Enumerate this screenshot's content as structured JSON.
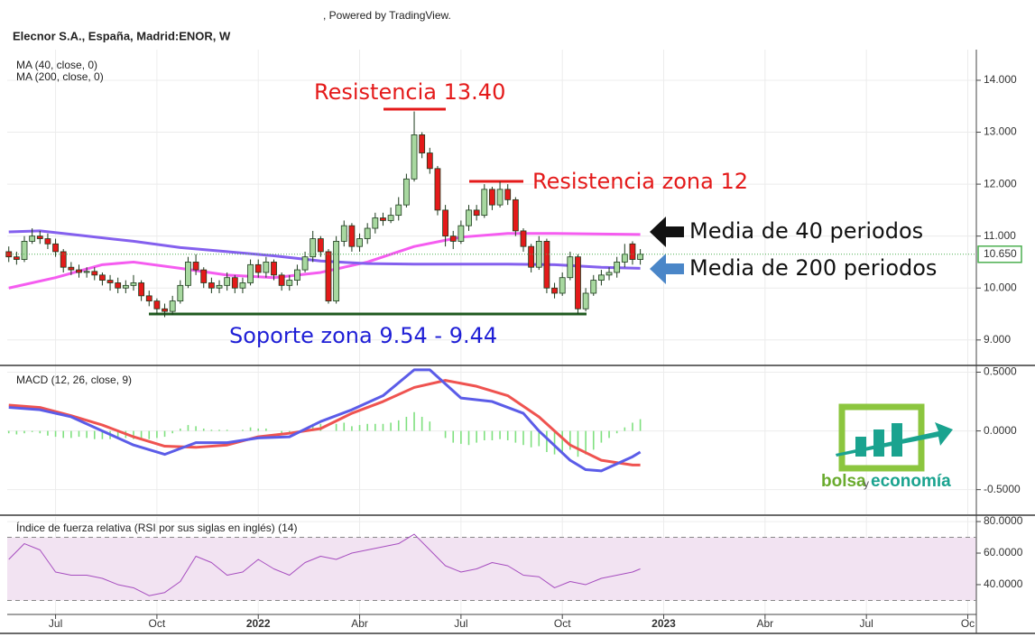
{
  "credit": ", Powered by TradingView.",
  "logo": {
    "word1": "bolsa",
    "word2": "y",
    "word3": "economía"
  },
  "chart_data": [
    {
      "type": "candlestick",
      "title": "Elecnor S.A., España, Madrid:ENOR, W",
      "up_color": "#a8d8a0",
      "down_color": "#e41a1a",
      "x": [
        0,
        1,
        2,
        3,
        4,
        5,
        6,
        7,
        8,
        9,
        10,
        11,
        12,
        13,
        14,
        15,
        16,
        17,
        18,
        19,
        20,
        21,
        22,
        23,
        24,
        25,
        26,
        27,
        28,
        29,
        30,
        31,
        32,
        33,
        34,
        35,
        36,
        37,
        38,
        39,
        40,
        41,
        42,
        43,
        44,
        45,
        46,
        47,
        48,
        49,
        50,
        51,
        52,
        53,
        54,
        55,
        56,
        57,
        58,
        59,
        60,
        61,
        62,
        63,
        64,
        65,
        66,
        67,
        68,
        69,
        70,
        71,
        72,
        73,
        74,
        75,
        76,
        77,
        78,
        79,
        80,
        81
      ],
      "open": [
        10.7,
        10.6,
        10.55,
        10.9,
        11.0,
        10.95,
        10.85,
        10.7,
        10.4,
        10.35,
        10.3,
        10.32,
        10.25,
        10.15,
        10.1,
        10.0,
        10.05,
        10.1,
        9.85,
        9.75,
        9.6,
        9.55,
        9.75,
        10.05,
        10.5,
        10.35,
        10.1,
        10.0,
        10.05,
        10.2,
        10.0,
        10.1,
        10.45,
        10.3,
        10.5,
        10.25,
        10.05,
        10.15,
        10.35,
        10.6,
        10.95,
        10.7,
        9.75,
        10.9,
        11.2,
        10.8,
        10.95,
        11.15,
        11.35,
        11.3,
        11.4,
        11.6,
        12.1,
        12.95,
        12.6,
        12.3,
        11.5,
        11.0,
        10.9,
        11.2,
        11.5,
        11.4,
        11.9,
        11.6,
        11.9,
        11.7,
        11.1,
        10.8,
        10.4,
        10.9,
        10.0,
        9.9,
        10.2,
        10.6,
        9.6,
        9.9,
        10.15,
        10.25,
        10.3,
        10.5,
        10.85,
        10.55
      ],
      "high": [
        10.8,
        10.7,
        11.0,
        11.15,
        11.1,
        11.05,
        10.95,
        10.75,
        10.5,
        10.45,
        10.4,
        10.4,
        10.3,
        10.25,
        10.2,
        10.15,
        10.25,
        10.15,
        9.95,
        9.8,
        9.7,
        9.85,
        10.15,
        10.6,
        10.65,
        10.4,
        10.2,
        10.15,
        10.3,
        10.25,
        10.2,
        10.55,
        10.55,
        10.6,
        10.55,
        10.3,
        10.25,
        10.45,
        10.7,
        11.1,
        11.0,
        10.75,
        11.0,
        11.3,
        11.25,
        11.05,
        11.25,
        11.45,
        11.45,
        11.55,
        11.75,
        12.2,
        13.4,
        13.0,
        12.7,
        12.35,
        11.6,
        11.1,
        11.3,
        11.6,
        11.6,
        12.0,
        11.95,
        12.05,
        12.0,
        11.75,
        11.15,
        10.85,
        11.0,
        10.95,
        10.1,
        10.3,
        10.7,
        10.65,
        10.0,
        10.25,
        10.35,
        10.4,
        10.6,
        10.85,
        10.9,
        10.75
      ],
      "low": [
        10.5,
        10.45,
        10.5,
        10.85,
        10.85,
        10.75,
        10.6,
        10.3,
        10.25,
        10.2,
        10.2,
        10.15,
        10.05,
        9.95,
        9.9,
        9.9,
        9.95,
        9.75,
        9.65,
        9.5,
        9.44,
        9.48,
        9.7,
        10.0,
        10.25,
        10.0,
        9.9,
        9.9,
        9.95,
        9.9,
        9.9,
        10.05,
        10.2,
        10.2,
        10.15,
        9.95,
        9.95,
        10.05,
        10.3,
        10.5,
        10.6,
        9.7,
        9.7,
        10.8,
        10.7,
        10.7,
        10.85,
        11.05,
        11.2,
        11.25,
        11.3,
        11.55,
        12.05,
        12.5,
        12.2,
        11.4,
        10.8,
        10.75,
        10.85,
        11.1,
        11.3,
        11.35,
        11.5,
        11.55,
        11.6,
        11.0,
        10.7,
        10.3,
        10.35,
        9.9,
        9.8,
        9.85,
        10.15,
        9.5,
        9.55,
        9.85,
        10.05,
        10.15,
        10.2,
        10.4,
        10.45,
        10.45
      ],
      "close": [
        10.6,
        10.55,
        10.9,
        11.0,
        10.95,
        10.85,
        10.7,
        10.4,
        10.35,
        10.3,
        10.32,
        10.25,
        10.15,
        10.1,
        10.0,
        10.05,
        10.1,
        9.85,
        9.75,
        9.6,
        9.55,
        9.75,
        10.05,
        10.5,
        10.35,
        10.1,
        10.0,
        10.05,
        10.2,
        10.0,
        10.1,
        10.45,
        10.3,
        10.5,
        10.25,
        10.05,
        10.15,
        10.35,
        10.6,
        10.95,
        10.7,
        9.75,
        10.9,
        11.2,
        10.8,
        10.95,
        11.15,
        11.35,
        11.3,
        11.4,
        11.6,
        12.1,
        12.95,
        12.6,
        12.3,
        11.5,
        11.0,
        10.9,
        11.2,
        11.5,
        11.4,
        11.9,
        11.6,
        11.9,
        11.7,
        11.1,
        10.8,
        10.4,
        10.9,
        10.0,
        9.9,
        10.2,
        10.6,
        9.6,
        9.9,
        10.15,
        10.25,
        10.3,
        10.5,
        10.65,
        10.55,
        10.65
      ],
      "series": [
        {
          "name": "MA (40, close, 0)",
          "color": "#f55cf0",
          "x": [
            0,
            6,
            12,
            16,
            22,
            28,
            34,
            40,
            46,
            52,
            58,
            64,
            70,
            76,
            81
          ],
          "values": [
            10.0,
            10.2,
            10.45,
            10.5,
            10.38,
            10.25,
            10.2,
            10.3,
            10.5,
            10.8,
            10.98,
            11.05,
            11.05,
            11.04,
            11.03
          ]
        },
        {
          "name": "MA (200, close, 0)",
          "color": "#8460ee",
          "x": [
            0,
            4,
            10,
            16,
            22,
            28,
            34,
            40,
            46,
            52,
            58,
            64,
            70,
            76,
            81
          ],
          "values": [
            11.08,
            11.1,
            11.0,
            10.9,
            10.78,
            10.7,
            10.62,
            10.52,
            10.47,
            10.46,
            10.46,
            10.46,
            10.45,
            10.4,
            10.38
          ]
        }
      ],
      "last_price": {
        "value": 10.65,
        "label": "10.650",
        "color": "#4caf50"
      },
      "ylim": [
        8.51,
        14.59
      ],
      "yticks": [
        {
          "value": 14,
          "label": "14.000"
        },
        {
          "value": 13,
          "label": "13.000"
        },
        {
          "value": 12,
          "label": "12.000"
        },
        {
          "value": 11,
          "label": "11.000"
        },
        {
          "value": 10,
          "label": "10.000"
        },
        {
          "value": 9,
          "label": "9.000"
        }
      ],
      "annotations": [
        {
          "text": "Resistencia 13.40",
          "color": "#e41a1a"
        },
        {
          "text": "Resistencia zona 12",
          "color": "#e41a1a"
        },
        {
          "text": "Media de 40 periodos",
          "color": "#111111"
        },
        {
          "text": "Media de 200 periodos",
          "color": "#111111"
        },
        {
          "text": "Soporte zona 9.54 - 9.44",
          "color": "#1f1fd6"
        }
      ]
    },
    {
      "type": "line",
      "title": "MACD (12, 26, close, 9)",
      "histogram": {
        "color": "#7fe07f",
        "x": [
          0,
          1,
          2,
          3,
          4,
          5,
          6,
          7,
          8,
          9,
          10,
          11,
          12,
          13,
          14,
          15,
          16,
          17,
          18,
          19,
          20,
          21,
          22,
          23,
          24,
          25,
          26,
          27,
          28,
          29,
          30,
          31,
          32,
          33,
          34,
          35,
          36,
          37,
          38,
          39,
          40,
          41,
          42,
          43,
          44,
          45,
          46,
          47,
          48,
          49,
          50,
          51,
          52,
          53,
          54,
          55,
          56,
          57,
          58,
          59,
          60,
          61,
          62,
          63,
          64,
          65,
          66,
          67,
          68,
          69,
          70,
          71,
          72,
          73,
          74,
          75,
          76,
          77,
          78,
          79,
          80,
          81
        ],
        "values": [
          -0.02,
          -0.03,
          -0.02,
          -0.01,
          -0.02,
          -0.04,
          -0.05,
          -0.06,
          -0.06,
          -0.05,
          -0.06,
          -0.07,
          -0.07,
          -0.07,
          -0.06,
          -0.06,
          -0.07,
          -0.07,
          -0.07,
          -0.06,
          -0.05,
          -0.02,
          0.02,
          0.05,
          0.04,
          0.02,
          0.01,
          0.01,
          0.01,
          0.0,
          0.01,
          0.03,
          0.02,
          0.02,
          0.0,
          -0.02,
          -0.02,
          -0.01,
          0.02,
          0.06,
          0.06,
          0.0,
          0.06,
          0.07,
          0.04,
          0.05,
          0.06,
          0.06,
          0.06,
          0.07,
          0.09,
          0.12,
          0.16,
          0.12,
          0.08,
          0.0,
          -0.06,
          -0.1,
          -0.11,
          -0.12,
          -0.1,
          -0.08,
          -0.08,
          -0.07,
          -0.08,
          -0.1,
          -0.12,
          -0.14,
          -0.13,
          -0.18,
          -0.2,
          -0.2,
          -0.16,
          -0.22,
          -0.2,
          -0.16,
          -0.1,
          -0.06,
          -0.02,
          0.03,
          0.07,
          0.1
        ]
      },
      "series": [
        {
          "color": "#ef5350",
          "x": [
            0,
            4,
            8,
            12,
            16,
            20,
            24,
            28,
            32,
            36,
            40,
            44,
            48,
            52,
            56,
            60,
            64,
            68,
            72,
            76,
            80,
            81
          ],
          "values": [
            0.22,
            0.2,
            0.13,
            0.05,
            -0.05,
            -0.13,
            -0.14,
            -0.12,
            -0.05,
            -0.02,
            0.02,
            0.15,
            0.25,
            0.37,
            0.43,
            0.38,
            0.3,
            0.12,
            -0.12,
            -0.25,
            -0.29,
            -0.29
          ]
        },
        {
          "color": "#5b5ce8",
          "x": [
            0,
            4,
            8,
            12,
            16,
            20,
            24,
            28,
            32,
            36,
            40,
            44,
            48,
            52,
            54,
            56,
            58,
            62,
            66,
            68,
            72,
            74,
            76,
            80,
            81
          ],
          "values": [
            0.2,
            0.18,
            0.12,
            0.0,
            -0.12,
            -0.2,
            -0.1,
            -0.1,
            -0.06,
            -0.05,
            0.08,
            0.18,
            0.3,
            0.52,
            0.52,
            0.4,
            0.28,
            0.25,
            0.15,
            0.0,
            -0.25,
            -0.33,
            -0.34,
            -0.22,
            -0.18
          ]
        }
      ],
      "ylim": [
        -0.71,
        0.55
      ],
      "yticks": [
        {
          "value": 0.5,
          "label": "0.5000"
        },
        {
          "value": 0,
          "label": "0.0000"
        },
        {
          "value": -0.5,
          "label": "-0.5000"
        }
      ]
    },
    {
      "type": "line",
      "title": "Índice de fuerza relativa (RSI por sus siglas en inglés) (14)",
      "band": [
        30,
        70
      ],
      "band_color": "#f2e3f2",
      "series": [
        {
          "color": "#a64dbf",
          "x": [
            0,
            2,
            4,
            6,
            8,
            10,
            12,
            14,
            16,
            18,
            20,
            22,
            24,
            26,
            28,
            30,
            32,
            34,
            36,
            38,
            40,
            42,
            44,
            46,
            48,
            50,
            52,
            54,
            56,
            58,
            60,
            62,
            64,
            66,
            68,
            70,
            72,
            74,
            76,
            78,
            80,
            81
          ],
          "values": [
            56,
            66,
            62,
            48,
            46,
            46,
            44,
            40,
            38,
            33,
            35,
            42,
            58,
            54,
            46,
            48,
            56,
            50,
            46,
            54,
            58,
            56,
            60,
            62,
            64,
            66,
            72,
            62,
            52,
            48,
            50,
            54,
            52,
            46,
            45,
            38,
            42,
            40,
            44,
            46,
            48,
            50
          ]
        }
      ],
      "ylim": [
        21.1,
        82.9
      ],
      "yticks": [
        {
          "value": 80,
          "label": "80.0000"
        },
        {
          "value": 60,
          "label": "60.0000"
        },
        {
          "value": 40,
          "label": "40.0000"
        }
      ],
      "xlim": [
        -0.2,
        124.1
      ],
      "xticks": [
        {
          "value": 6,
          "label": "Jul"
        },
        {
          "value": 19,
          "label": "Oct"
        },
        {
          "value": 32,
          "label": "2022"
        },
        {
          "value": 45,
          "label": "Abr"
        },
        {
          "value": 58,
          "label": "Jul"
        },
        {
          "value": 71,
          "label": "Oct"
        },
        {
          "value": 84,
          "label": "2023"
        },
        {
          "value": 97,
          "label": "Abr"
        },
        {
          "value": 110,
          "label": "Jul"
        },
        {
          "value": 123,
          "label": "Oc"
        }
      ]
    }
  ]
}
